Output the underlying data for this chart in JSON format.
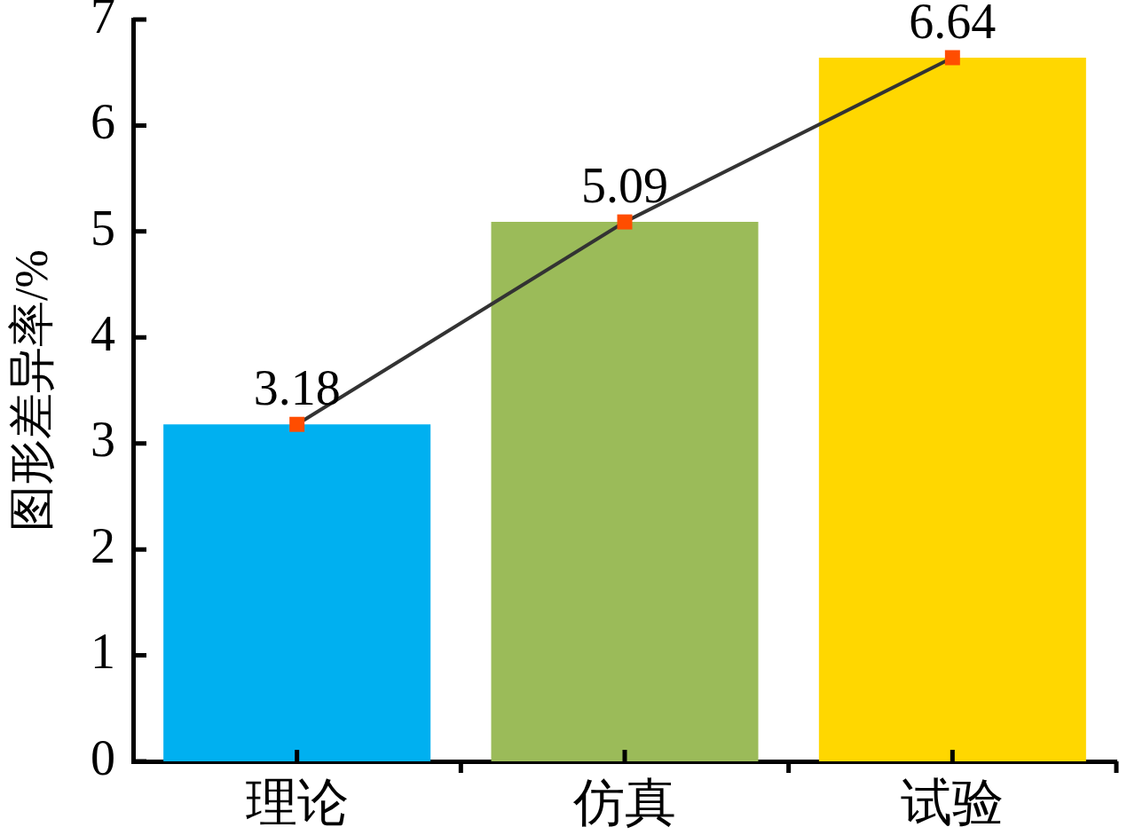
{
  "chart_data": {
    "type": "bar",
    "ylabel": "图形差异率/%",
    "categories": [
      "理论",
      "仿真",
      "试验"
    ],
    "series": [
      {
        "values": [
          3.18,
          5.09,
          6.64
        ],
        "colors": [
          "#00b0f0",
          "#9bbb59",
          "#ffd700"
        ]
      },
      {
        "type": "line",
        "values": [
          3.18,
          5.09,
          6.64
        ],
        "color": "#333333",
        "colors": [
          "#ff4d00",
          "#ff4d00",
          "#ff4d00"
        ],
        "marker": "square",
        "value_labels": [
          "3.18",
          "5.09",
          "6.64"
        ]
      }
    ],
    "ylim": [
      0,
      7
    ],
    "yticks": [
      0,
      1,
      2,
      3,
      4,
      5,
      6,
      7
    ]
  }
}
